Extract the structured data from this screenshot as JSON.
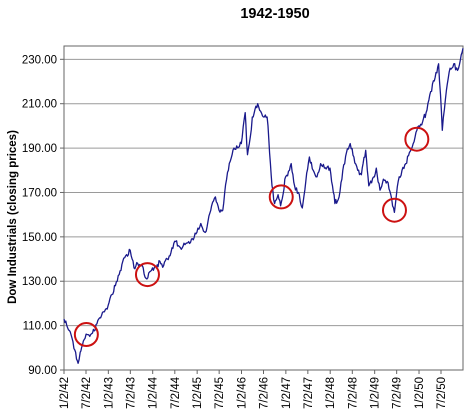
{
  "chart_data": {
    "type": "line",
    "title": "1942-1950",
    "xlabel": "",
    "ylabel": "Dow Industrials (closing prices)",
    "ylim": [
      90,
      236
    ],
    "xlim": [
      "1942-01-02",
      "1950-12-30"
    ],
    "grid": true,
    "legend": "none",
    "y_ticks": [
      90,
      110,
      130,
      150,
      170,
      190,
      210,
      230
    ],
    "y_tick_labels": [
      "90.00",
      "110.00",
      "130.00",
      "150.00",
      "170.00",
      "190.00",
      "210.00",
      "230.00"
    ],
    "x_ticks": [
      "1942-01-02",
      "1942-07-02",
      "1943-01-02",
      "1943-07-02",
      "1944-01-02",
      "1944-07-02",
      "1945-01-02",
      "1945-07-02",
      "1946-01-02",
      "1946-07-02",
      "1947-01-02",
      "1947-07-02",
      "1948-01-02",
      "1948-07-02",
      "1949-01-02",
      "1949-07-02",
      "1950-01-02",
      "1950-07-02"
    ],
    "x_tick_labels": [
      "1/2/42",
      "7/2/42",
      "1/2/43",
      "7/2/43",
      "1/2/44",
      "7/2/44",
      "1/2/45",
      "7/2/45",
      "1/2/46",
      "7/2/46",
      "1/2/47",
      "7/2/47",
      "1/2/48",
      "7/2/48",
      "1/2/49",
      "7/2/49",
      "1/2/50",
      "7/2/50"
    ],
    "series": [
      {
        "color": "#1a1a8c",
        "points": [
          [
            "1942-01-02",
            113
          ],
          [
            "1942-02-01",
            109
          ],
          [
            "1942-03-01",
            106
          ],
          [
            "1942-04-01",
            99
          ],
          [
            "1942-04-28",
            93
          ],
          [
            "1942-05-15",
            98
          ],
          [
            "1942-06-10",
            103
          ],
          [
            "1942-07-10",
            106
          ],
          [
            "1942-08-10",
            106
          ],
          [
            "1942-09-15",
            108
          ],
          [
            "1942-10-15",
            113
          ],
          [
            "1942-11-15",
            116
          ],
          [
            "1942-12-31",
            119
          ],
          [
            "1943-02-01",
            124
          ],
          [
            "1943-03-01",
            128
          ],
          [
            "1943-04-01",
            133
          ],
          [
            "1943-05-01",
            139
          ],
          [
            "1943-06-01",
            142
          ],
          [
            "1943-07-01",
            144
          ],
          [
            "1943-08-01",
            136
          ],
          [
            "1943-09-01",
            138
          ],
          [
            "1943-10-01",
            137
          ],
          [
            "1943-11-15",
            131
          ],
          [
            "1943-12-31",
            136
          ],
          [
            "1944-02-01",
            136
          ],
          [
            "1944-03-01",
            139
          ],
          [
            "1944-04-01",
            137
          ],
          [
            "1944-05-01",
            140
          ],
          [
            "1944-06-01",
            143
          ],
          [
            "1944-07-01",
            148
          ],
          [
            "1944-08-01",
            146
          ],
          [
            "1944-09-01",
            145
          ],
          [
            "1944-10-01",
            147
          ],
          [
            "1944-11-01",
            147
          ],
          [
            "1944-12-31",
            152
          ],
          [
            "1945-02-01",
            156
          ],
          [
            "1945-03-10",
            152
          ],
          [
            "1945-04-01",
            157
          ],
          [
            "1945-05-01",
            164
          ],
          [
            "1945-06-01",
            168
          ],
          [
            "1945-07-01",
            162
          ],
          [
            "1945-08-01",
            162
          ],
          [
            "1945-09-01",
            176
          ],
          [
            "1945-10-01",
            184
          ],
          [
            "1945-11-01",
            190
          ],
          [
            "1945-12-31",
            192
          ],
          [
            "1946-02-01",
            206
          ],
          [
            "1946-02-20",
            187
          ],
          [
            "1946-03-15",
            195
          ],
          [
            "1946-04-01",
            204
          ],
          [
            "1946-05-15",
            210
          ],
          [
            "1946-06-01",
            207
          ],
          [
            "1946-07-01",
            204
          ],
          [
            "1946-08-01",
            204
          ],
          [
            "1946-08-15",
            194
          ],
          [
            "1946-09-10",
            173
          ],
          [
            "1946-10-01",
            165
          ],
          [
            "1946-10-30",
            169
          ],
          [
            "1946-11-20",
            164
          ],
          [
            "1946-12-31",
            177
          ],
          [
            "1947-02-01",
            180
          ],
          [
            "1947-02-15",
            183
          ],
          [
            "1947-03-15",
            173
          ],
          [
            "1947-04-15",
            170
          ],
          [
            "1947-05-17",
            163
          ],
          [
            "1947-06-15",
            175
          ],
          [
            "1947-07-15",
            186
          ],
          [
            "1947-08-15",
            180
          ],
          [
            "1947-09-15",
            177
          ],
          [
            "1947-10-15",
            183
          ],
          [
            "1947-11-15",
            181
          ],
          [
            "1947-12-31",
            181
          ],
          [
            "1948-02-10",
            165
          ],
          [
            "1948-03-15",
            168
          ],
          [
            "1948-04-15",
            180
          ],
          [
            "1948-05-15",
            188
          ],
          [
            "1948-06-15",
            192
          ],
          [
            "1948-07-15",
            186
          ],
          [
            "1948-08-15",
            180
          ],
          [
            "1948-09-15",
            178
          ],
          [
            "1948-10-20",
            189
          ],
          [
            "1948-11-15",
            173
          ],
          [
            "1948-12-31",
            177
          ],
          [
            "1949-01-15",
            181
          ],
          [
            "1949-02-15",
            171
          ],
          [
            "1949-03-15",
            176
          ],
          [
            "1949-04-15",
            175
          ],
          [
            "1949-05-15",
            169
          ],
          [
            "1949-06-13",
            161
          ],
          [
            "1949-07-15",
            175
          ],
          [
            "1949-08-15",
            180
          ],
          [
            "1949-09-15",
            183
          ],
          [
            "1949-10-15",
            188
          ],
          [
            "1949-11-15",
            192
          ],
          [
            "1949-12-31",
            200
          ],
          [
            "1950-02-01",
            202
          ],
          [
            "1950-03-01",
            206
          ],
          [
            "1950-04-01",
            214
          ],
          [
            "1950-05-15",
            222
          ],
          [
            "1950-06-12",
            228
          ],
          [
            "1950-07-13",
            198
          ],
          [
            "1950-08-15",
            216
          ],
          [
            "1950-09-15",
            226
          ],
          [
            "1950-10-15",
            228
          ],
          [
            "1950-11-15",
            225
          ],
          [
            "1950-12-15",
            232
          ],
          [
            "1950-12-30",
            235
          ]
        ]
      }
    ],
    "annotations": [
      {
        "shape": "circle",
        "color": "#cc1111",
        "x": "1942-07-05",
        "y": 106
      },
      {
        "shape": "circle",
        "color": "#cc1111",
        "x": "1943-11-20",
        "y": 133
      },
      {
        "shape": "circle",
        "color": "#cc1111",
        "x": "1946-11-25",
        "y": 168
      },
      {
        "shape": "circle",
        "color": "#cc1111",
        "x": "1949-06-14",
        "y": 162
      },
      {
        "shape": "circle",
        "color": "#cc1111",
        "x": "1949-12-15",
        "y": 194
      }
    ]
  }
}
